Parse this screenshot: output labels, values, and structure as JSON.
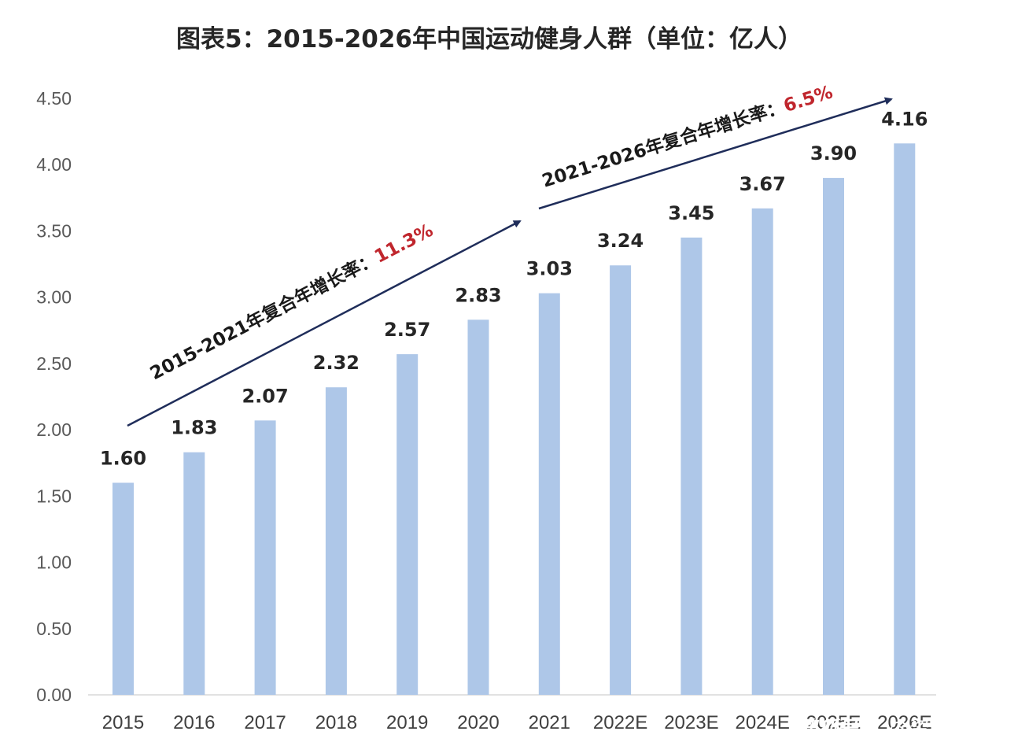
{
  "chart_data": {
    "type": "bar",
    "title": "图表5：2015-2026年中国运动健身人群（单位：亿人）",
    "categories": [
      "2015",
      "2016",
      "2017",
      "2018",
      "2019",
      "2020",
      "2021",
      "2022E",
      "2023E",
      "2024E",
      "2025E",
      "2026E"
    ],
    "values": [
      1.6,
      1.83,
      2.07,
      2.32,
      2.57,
      2.83,
      3.03,
      3.24,
      3.45,
      3.67,
      3.9,
      4.16
    ],
    "data_labels": [
      "1.60",
      "1.83",
      "2.07",
      "2.32",
      "2.57",
      "2.83",
      "3.03",
      "3.24",
      "3.45",
      "3.67",
      "3.90",
      "4.16"
    ],
    "y_ticks": [
      "0.00",
      "0.50",
      "1.00",
      "1.50",
      "2.00",
      "2.50",
      "3.00",
      "3.50",
      "4.00",
      "4.50"
    ],
    "ylim": [
      0,
      4.5
    ],
    "xlabel": "",
    "ylabel": "",
    "grid": false,
    "legend": "none",
    "bar_color": "#aec7e8",
    "annotations": [
      {
        "label": "2015-2021年复合年增长率：",
        "rate": "11.3%",
        "from": "2015",
        "to": "2021",
        "rate_color": "#c0262d"
      },
      {
        "label": "2021-2026年复合年增长率：",
        "rate": "6.5%",
        "from": "2021",
        "to": "2026E",
        "rate_color": "#c0262d"
      }
    ],
    "arrow_color": "#1f2d5a"
  },
  "watermark": {
    "text": "@资本星球",
    "logo": "搜狐号"
  }
}
